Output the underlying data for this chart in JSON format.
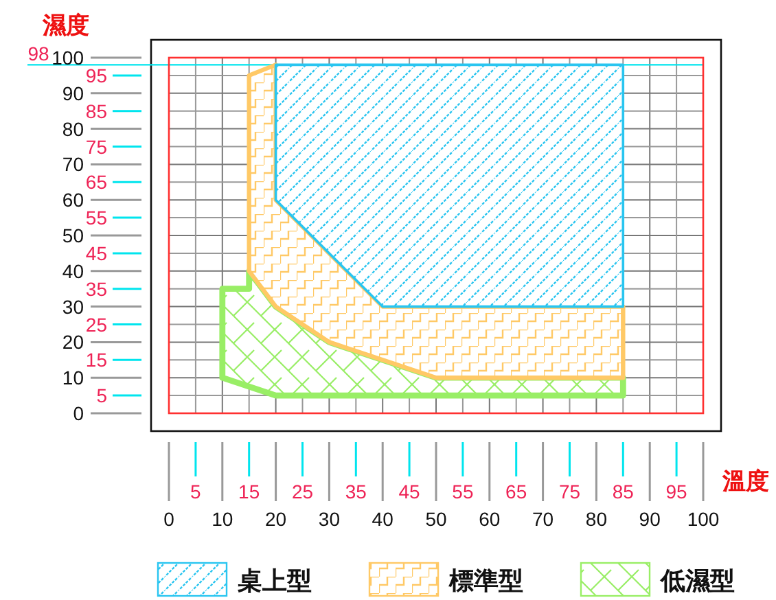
{
  "chart_data": {
    "type": "area",
    "xlabel": "溫度",
    "ylabel": "濕度",
    "xlim": [
      0,
      100
    ],
    "ylim": [
      0,
      100
    ],
    "xticks": [
      0,
      10,
      20,
      30,
      40,
      50,
      60,
      70,
      80,
      90,
      100
    ],
    "yticks": [
      0,
      10,
      20,
      30,
      40,
      50,
      60,
      70,
      80,
      90,
      100
    ],
    "x2lim": [
      0,
      100
    ],
    "x2ticks": [
      5,
      15,
      25,
      35,
      45,
      55,
      65,
      75,
      85,
      95
    ],
    "y2lim": [
      0,
      100
    ],
    "y2ticks": [
      5,
      15,
      25,
      35,
      45,
      55,
      65,
      75,
      85,
      95
    ],
    "grid": true,
    "legend": "bottom",
    "ref_lines": [
      {
        "axis": "y",
        "value": 98,
        "label": "98",
        "color": "#00e5ee"
      }
    ],
    "series": [
      {
        "name": "桌上型",
        "color": "#29c5f0",
        "x": [
          20,
          40,
          85
        ],
        "values": [
          null,
          null,
          null
        ],
        "upper": [
          98,
          98,
          98
        ],
        "lower": [
          60,
          30,
          30
        ]
      },
      {
        "name": "標準型",
        "color": "#ffc966",
        "x": [
          15,
          20,
          20,
          30,
          40,
          50,
          85
        ],
        "values": [
          null,
          null,
          null,
          null,
          null,
          null,
          null
        ],
        "upper": [
          95,
          98,
          60,
          45,
          30,
          30,
          30
        ],
        "lower": [
          40,
          30,
          30,
          20,
          15,
          10,
          10
        ]
      },
      {
        "name": "低濕型",
        "color": "#99ee66",
        "x": [
          10,
          15,
          15,
          20,
          30,
          50,
          85
        ],
        "values": [
          null,
          null,
          null,
          null,
          null,
          null,
          null
        ],
        "upper": [
          35,
          35,
          40,
          30,
          20,
          10,
          10
        ],
        "lower": [
          10,
          7.5,
          7.5,
          5,
          5,
          5,
          5
        ]
      }
    ]
  }
}
